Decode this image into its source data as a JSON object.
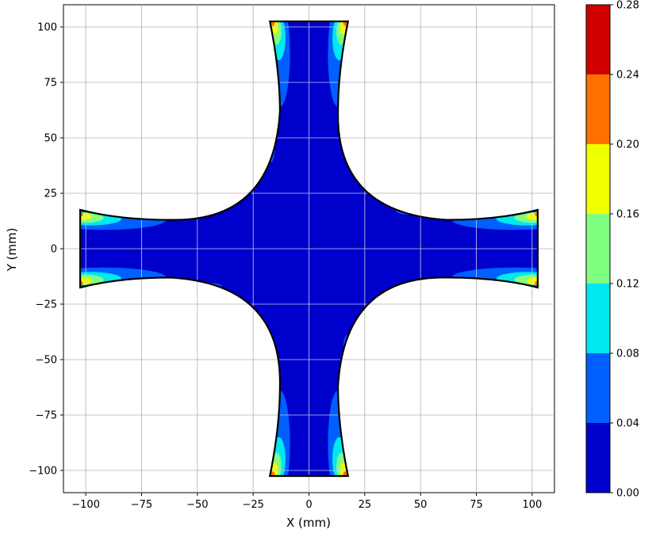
{
  "chart_data": {
    "type": "heatmap",
    "title": "",
    "xlabel": "X (mm)",
    "ylabel": "Y (mm)",
    "xlim": [
      -110,
      110
    ],
    "ylim": [
      -110,
      110
    ],
    "x_ticks": [
      -100,
      -75,
      -50,
      -25,
      0,
      25,
      50,
      75,
      100
    ],
    "x_tick_labels": [
      "−100",
      "−75",
      "−50",
      "−25",
      "0",
      "25",
      "50",
      "75",
      "100"
    ],
    "y_ticks": [
      100,
      75,
      50,
      25,
      0,
      -25,
      -50,
      -75,
      -100
    ],
    "y_tick_labels": [
      "100",
      "75",
      "50",
      "25",
      "0",
      "−25",
      "−50",
      "−75",
      "−100"
    ],
    "grid": true,
    "shape": "cruciform specimen",
    "arm_end_half_width_mm": 17.5,
    "arm_neck_half_width_mm": 13,
    "arm_length_mm": 102.5,
    "colormap": "jet",
    "colorbar": {
      "levels": [
        0.0,
        0.04,
        0.08,
        0.12,
        0.16,
        0.2,
        0.24,
        0.28
      ],
      "tick_labels": [
        "0.00",
        "0.04",
        "0.08",
        "0.12",
        "0.16",
        "0.20",
        "0.24",
        "0.28"
      ],
      "colors": [
        "#0000cd",
        "#0060ff",
        "#00e8f0",
        "#80ff80",
        "#f0ff00",
        "#ff7000",
        "#d00000"
      ]
    },
    "field_summary": {
      "background_level_range": [
        0.0,
        0.04
      ],
      "max_level_range": [
        0.24,
        0.28
      ],
      "hotspots": [
        "arm tips near the straight free edges",
        "fillet-adjacent edges"
      ]
    }
  }
}
